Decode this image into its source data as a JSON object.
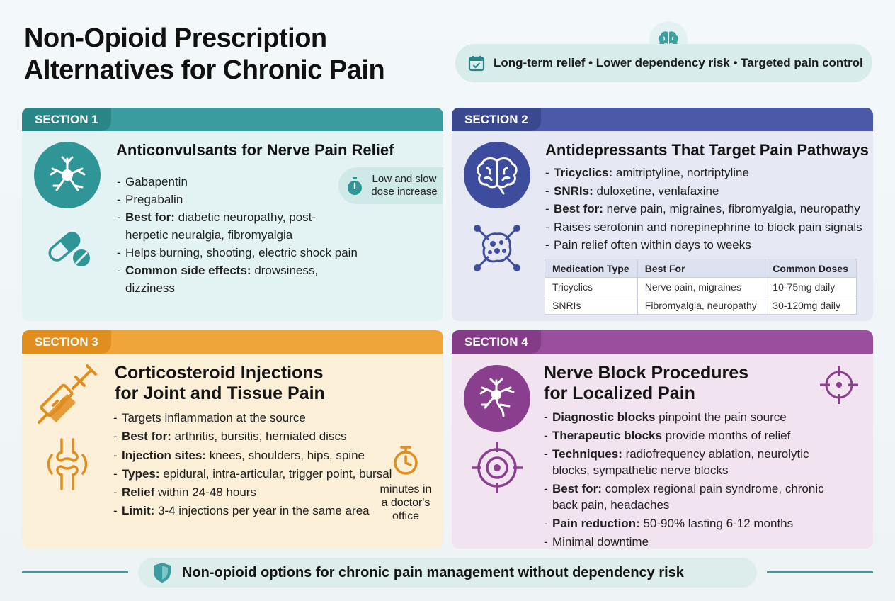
{
  "header": {
    "title_line1": "Non-Opioid Prescription",
    "title_line2": "Alternatives for Chronic Pain",
    "tagline": "Long-term relief • Lower dependency risk • Targeted pain control",
    "icons": [
      "brain-icon",
      "calendar-check-icon"
    ],
    "accent": "#3a9c9e"
  },
  "section1": {
    "tab": "SECTION 1",
    "title": "Anticonvulsants for Nerve Pain Relief",
    "points": [
      {
        "bold": "",
        "text": "Gabapentin"
      },
      {
        "bold": "",
        "text": "Pregabalin"
      },
      {
        "bold": "Best for:",
        "text": " diabetic neuropathy, post-herpetic neuralgia, fibromyalgia"
      },
      {
        "bold": "",
        "text": "Helps burning, shooting, electric shock pain"
      },
      {
        "bold": "Common side effects:",
        "text": " drowsiness, dizziness"
      }
    ],
    "note_line1": "Low and slow",
    "note_line2": "dose increase",
    "icons": [
      "neuron-icon",
      "pill-capsule-icon",
      "stopwatch-icon"
    ],
    "color": "#3a9c9e"
  },
  "section2": {
    "tab": "SECTION 2",
    "title": "Antidepressants That Target Pain Pathways",
    "points": [
      {
        "bold": "Tricyclics:",
        "text": " amitriptyline, nortriptyline"
      },
      {
        "bold": "SNRIs:",
        "text": " duloxetine, venlafaxine"
      },
      {
        "bold": "Best for:",
        "text": " nerve pain, migraines, fibromyalgia, neuropathy"
      },
      {
        "bold": "",
        "text": "Raises serotonin and norepinephrine to block pain signals"
      },
      {
        "bold": "",
        "text": "Pain relief often within days to weeks"
      }
    ],
    "table": {
      "headers": [
        "Medication Type",
        "Best For",
        "Common Doses"
      ],
      "rows": [
        [
          "Tricyclics",
          "Nerve pain, migraines",
          "10-75mg daily"
        ],
        [
          "SNRIs",
          "Fibromyalgia, neuropathy",
          "30-120mg daily"
        ]
      ]
    },
    "icons": [
      "brain-icon",
      "molecule-network-icon"
    ],
    "color": "#4a5aa8"
  },
  "section3": {
    "tab": "SECTION 3",
    "title_line1": "Corticosteroid Injections",
    "title_line2": "for Joint and Tissue Pain",
    "points": [
      {
        "bold": "",
        "text": "Targets inflammation at the source"
      },
      {
        "bold": "Best for:",
        "text": " arthritis, bursitis, herniated discs"
      },
      {
        "bold": "Injection sites:",
        "text": " knees, shoulders, hips, spine"
      },
      {
        "bold": "Types:",
        "text": " epidural, intra-articular, trigger point, bursal"
      },
      {
        "bold": "Relief",
        "text": " within 24-48 hours"
      },
      {
        "bold": "Limit:",
        "text": " 3-4 injections per year in the same area"
      }
    ],
    "note_line1": "minutes in",
    "note_line2": "a doctor's",
    "note_line3": "office",
    "icons": [
      "syringe-icon",
      "knee-joint-icon",
      "stopwatch-icon"
    ],
    "color": "#efa53a"
  },
  "section4": {
    "tab": "SECTION 4",
    "title_line1": "Nerve Block Procedures",
    "title_line2": "for Localized Pain",
    "points": [
      {
        "bold": "Diagnostic blocks",
        "text": " pinpoint the pain source"
      },
      {
        "bold": "Therapeutic blocks",
        "text": " provide months of relief"
      },
      {
        "bold": "Techniques:",
        "text": " radiofrequency ablation, neurolytic blocks, sympathetic nerve blocks"
      },
      {
        "bold": "Best for:",
        "text": " complex regional pain syndrome, chronic back pain, headaches"
      },
      {
        "bold": "Pain reduction:",
        "text": " 50-90% lasting 6-12 months"
      },
      {
        "bold": "",
        "text": "Minimal downtime"
      }
    ],
    "icons": [
      "nerve-icon",
      "target-icon",
      "crosshair-icon"
    ],
    "color": "#9a4f9e"
  },
  "footer": {
    "text": "Non-opioid options for chronic pain management without dependency risk",
    "icon": "shield-icon"
  }
}
